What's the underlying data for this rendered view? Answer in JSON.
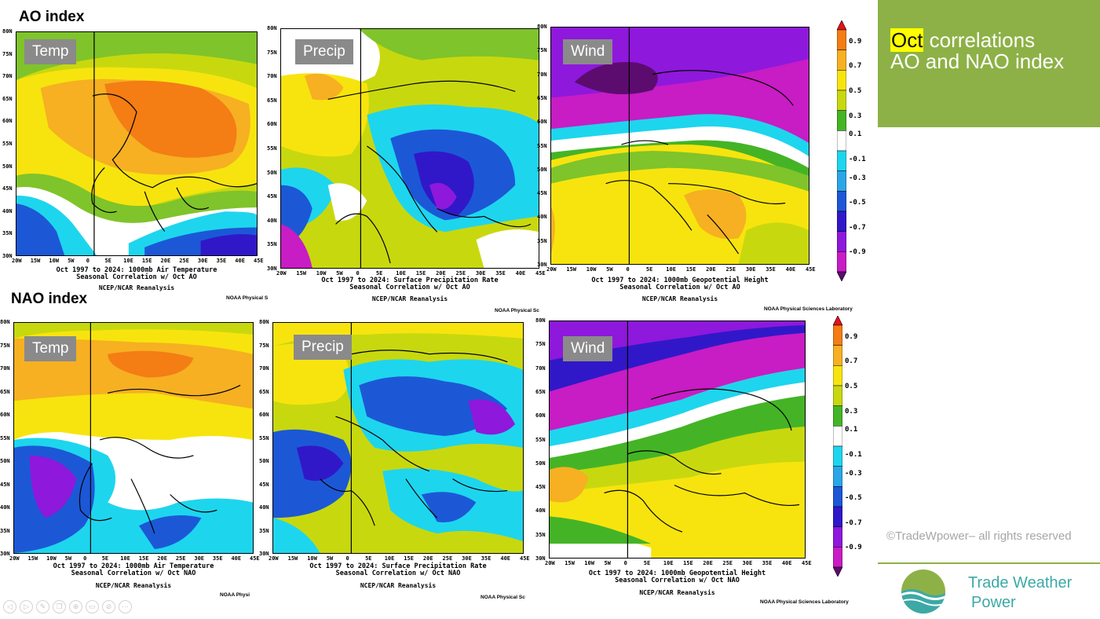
{
  "rows": {
    "ao_title": "AO index",
    "nao_title": "NAO index"
  },
  "panels": {
    "ao_temp": {
      "tag": "Temp",
      "caption1": "Oct 1997 to 2024: 1000mb Air Temperature",
      "caption2": "Seasonal Correlation w/ Oct AO",
      "caption3": "NCEP/NCAR Reanalysis",
      "noaa": "NOAA Physical S"
    },
    "ao_precip": {
      "tag": "Precip",
      "caption1": "Oct 1997 to 2024: Surface Precipitation Rate",
      "caption2": "Seasonal Correlation w/ Oct AO",
      "caption3": "NCEP/NCAR Reanalysis",
      "noaa": "NOAA Physical Sc"
    },
    "ao_wind": {
      "tag": "Wind",
      "caption1": "Oct 1997 to 2024: 1000mb Geopotential Height",
      "caption2": "Seasonal Correlation w/ Oct AO",
      "caption3": "NCEP/NCAR Reanalysis",
      "noaa": "NOAA Physical Sciences Laboratory"
    },
    "nao_temp": {
      "tag": "Temp",
      "caption1": "Oct 1997 to 2024: 1000mb Air Temperature",
      "caption2": "Seasonal Correlation w/ Oct NAO",
      "caption3": "NCEP/NCAR Reanalysis",
      "noaa": "NOAA Physi"
    },
    "nao_precip": {
      "tag": "Precip",
      "caption1": "Oct 1997 to 2024: Surface Precipitation Rate",
      "caption2": "Seasonal Correlation w/ Oct NAO",
      "caption3": "NCEP/NCAR Reanalysis",
      "noaa": "NOAA Physical Sc"
    },
    "nao_wind": {
      "tag": "Wind",
      "caption1": "Oct 1997 to 2024: 1000mb Geopotential Height",
      "caption2": "Seasonal Correlation w/ Oct NAO",
      "caption3": "NCEP/NCAR Reanalysis",
      "noaa": "NOAA Physical Sciences Laboratory"
    }
  },
  "axes": {
    "lat_labels": [
      "80N",
      "75N",
      "70N",
      "65N",
      "60N",
      "55N",
      "50N",
      "45N",
      "40N",
      "35N",
      "30N"
    ],
    "lon_labels": [
      "20W",
      "15W",
      "10W",
      "5W",
      "0",
      "5E",
      "10E",
      "15E",
      "20E",
      "25E",
      "30E",
      "35E",
      "40E",
      "45E"
    ]
  },
  "colorbar": {
    "labels": [
      "0.9",
      "0.7",
      "0.5",
      "0.3",
      "0.1",
      "-0.1",
      "-0.3",
      "-0.5",
      "-0.7",
      "-0.9"
    ],
    "colors": [
      "#e8101a",
      "#f47d14",
      "#f6b022",
      "#f7e40e",
      "#c8d80f",
      "#44b426",
      "#ffffff",
      "#1ed5ee",
      "#2aa6e6",
      "#1c58d6",
      "#3018c8",
      "#8e18dc",
      "#c81cc4",
      "#5b0c6e"
    ]
  },
  "sidebar": {
    "title_highlight": "Oct",
    "title_rest": " correlations",
    "title_line2": "AO and NAO index",
    "copyright": "©TradeWpower– all rights reserved",
    "brand_line1": "Trade Weather",
    "brand_line2": "Power"
  },
  "colors": {
    "accent_green": "#8db146",
    "brand_teal": "#3ca9a6"
  },
  "nav_icons": [
    "prev-icon",
    "next-icon",
    "pen-icon",
    "copy-icon",
    "zoom-icon",
    "subtitles-icon",
    "camera-off-icon",
    "more-icon"
  ]
}
